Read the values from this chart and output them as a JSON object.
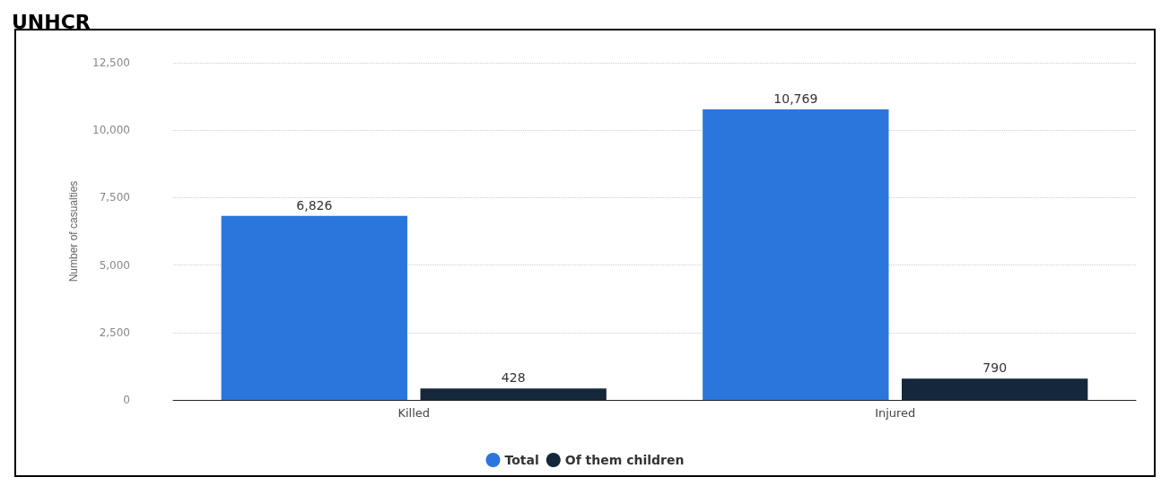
{
  "chart_data": {
    "type": "bar",
    "title": "UNHCR",
    "ylabel": "Number of casualties",
    "categories": [
      "Killed",
      "Injured"
    ],
    "series": [
      {
        "name": "Total",
        "color": "#2a76dd",
        "values": [
          6826,
          10769
        ],
        "value_labels": [
          "6,826",
          "10,769"
        ]
      },
      {
        "name": "Of them children",
        "color": "#15273b",
        "values": [
          428,
          790
        ],
        "value_labels": [
          "428",
          "790"
        ]
      }
    ],
    "ylim": [
      0,
      12500
    ],
    "yticks": [
      {
        "value": 0,
        "label": "0"
      },
      {
        "value": 2500,
        "label": "2,500"
      },
      {
        "value": 5000,
        "label": "5,000"
      },
      {
        "value": 7500,
        "label": "7,500"
      },
      {
        "value": 10000,
        "label": "10,000"
      },
      {
        "value": 12500,
        "label": "12,500"
      }
    ],
    "grid": true,
    "legend": "bottom"
  }
}
